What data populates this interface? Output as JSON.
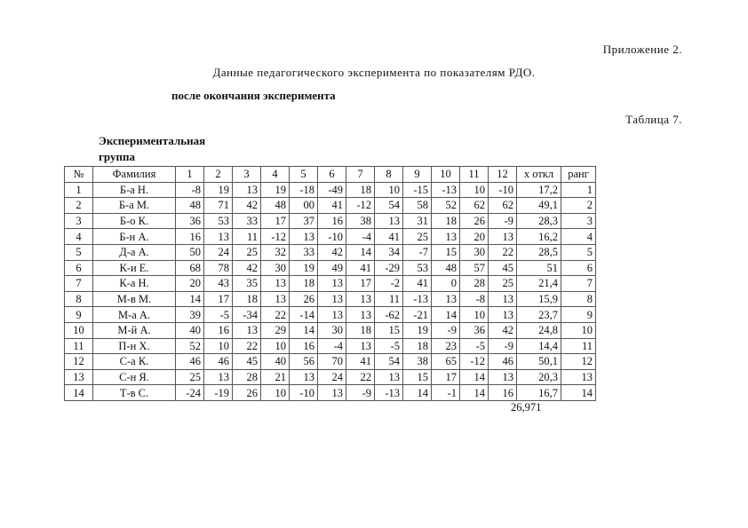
{
  "appendix": "Приложение 2.",
  "title": "Данные педагогического эксперимента по показателям РДО.",
  "subtitle": "после окончания эксперимента",
  "table_number": "Таблица 7.",
  "group_label": "Экспериментальная группа",
  "table": {
    "headers": [
      "№",
      "Фамилия",
      "1",
      "2",
      "3",
      "4",
      "5",
      "6",
      "7",
      "8",
      "9",
      "10",
      "11",
      "12",
      "x откл",
      "ранг"
    ],
    "rows": [
      [
        "1",
        "Б-а Н.",
        "-8",
        "19",
        "13",
        "19",
        "-18",
        "-49",
        "18",
        "10",
        "-15",
        "-13",
        "10",
        "-10",
        "17,2",
        "1"
      ],
      [
        "2",
        "Б-а М.",
        "48",
        "71",
        "42",
        "48",
        "00",
        "41",
        "-12",
        "54",
        "58",
        "52",
        "62",
        "62",
        "49,1",
        "2"
      ],
      [
        "3",
        "Б-о К.",
        "36",
        "53",
        "33",
        "17",
        "37",
        "16",
        "38",
        "13",
        "31",
        "18",
        "26",
        "-9",
        "28,3",
        "3"
      ],
      [
        "4",
        "Б-н А.",
        "16",
        "13",
        "11",
        "-12",
        "13",
        "-10",
        "-4",
        "41",
        "25",
        "13",
        "20",
        "13",
        "16,2",
        "4"
      ],
      [
        "5",
        "Д-а А.",
        "50",
        "24",
        "25",
        "32",
        "33",
        "42",
        "14",
        "34",
        "-7",
        "15",
        "30",
        "22",
        "28,5",
        "5"
      ],
      [
        "6",
        "К-и Е.",
        "68",
        "78",
        "42",
        "30",
        "19",
        "49",
        "41",
        "-29",
        "53",
        "48",
        "57",
        "45",
        "51",
        "6"
      ],
      [
        "7",
        "К-а Н.",
        "20",
        "43",
        "35",
        "13",
        "18",
        "13",
        "17",
        "-2",
        "41",
        "0",
        "28",
        "25",
        "21,4",
        "7"
      ],
      [
        "8",
        "М-в М.",
        "14",
        "17",
        "18",
        "13",
        "26",
        "13",
        "13",
        "11",
        "-13",
        "13",
        "-8",
        "13",
        "15,9",
        "8"
      ],
      [
        "9",
        "М-а А.",
        "39",
        "-5",
        "-34",
        "22",
        "-14",
        "13",
        "13",
        "-62",
        "-21",
        "14",
        "10",
        "13",
        "23,7",
        "9"
      ],
      [
        "10",
        "М-й А.",
        "40",
        "16",
        "13",
        "29",
        "14",
        "30",
        "18",
        "15",
        "19",
        "-9",
        "36",
        "42",
        "24,8",
        "10"
      ],
      [
        "11",
        "П-н Х.",
        "52",
        "10",
        "22",
        "10",
        "16",
        "-4",
        "13",
        "-5",
        "18",
        "23",
        "-5",
        "-9",
        "14,4",
        "11"
      ],
      [
        "12",
        "С-а К.",
        "46",
        "46",
        "45",
        "40",
        "56",
        "70",
        "41",
        "54",
        "38",
        "65",
        "-12",
        "46",
        "50,1",
        "12"
      ],
      [
        "13",
        "С-н Я.",
        "25",
        "13",
        "28",
        "21",
        "13",
        "24",
        "22",
        "13",
        "15",
        "17",
        "14",
        "13",
        "20,3",
        "13"
      ],
      [
        "14",
        "Т-в С.",
        "-24",
        "-19",
        "26",
        "10",
        "-10",
        "13",
        "-9",
        "-13",
        "14",
        "-1",
        "14",
        "16",
        "16,7",
        "14"
      ]
    ],
    "total": "26,971"
  }
}
